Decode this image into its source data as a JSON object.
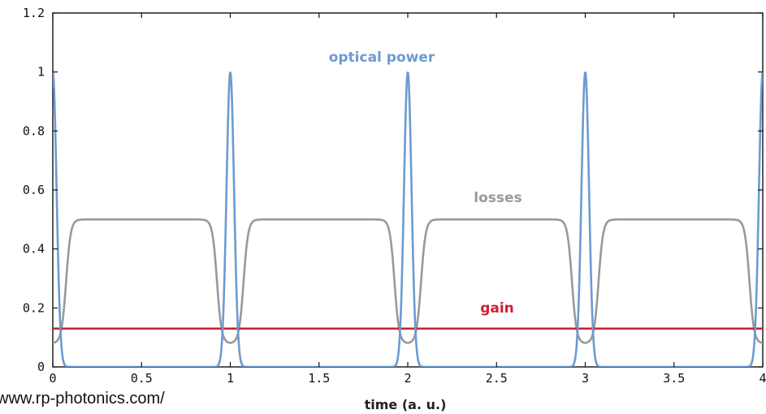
{
  "chart_data": {
    "type": "line",
    "xlabel": "time (a. u.)",
    "ylabel": "",
    "xlim": [
      0,
      4
    ],
    "ylim": [
      0,
      1.2
    ],
    "x_ticks": [
      "0",
      "0.5",
      "1",
      "1.5",
      "2",
      "2.5",
      "3",
      "3.5",
      "4"
    ],
    "y_ticks": [
      "0",
      "0.2",
      "0.4",
      "0.6",
      "0.8",
      "1",
      "1.2"
    ],
    "grid": false,
    "legend": "inline labels",
    "series": [
      {
        "name": "optical power",
        "color": "#6b9bd1",
        "pulse_centers": [
          0,
          1,
          2,
          3,
          4
        ],
        "peak": 1.0,
        "baseline": 0.0,
        "pulse_width_fwhm": 0.05
      },
      {
        "name": "losses",
        "color": "#999999",
        "saturated_level": 0.5,
        "minimum_at_pulse": 0.08,
        "dip_centers": [
          0,
          1,
          2,
          3,
          4
        ]
      },
      {
        "name": "gain",
        "color": "#cc2233",
        "constant_value": 0.13
      }
    ]
  },
  "source_credit": "www.rp-photonics.com/",
  "colors": {
    "axis": "#111111"
  }
}
